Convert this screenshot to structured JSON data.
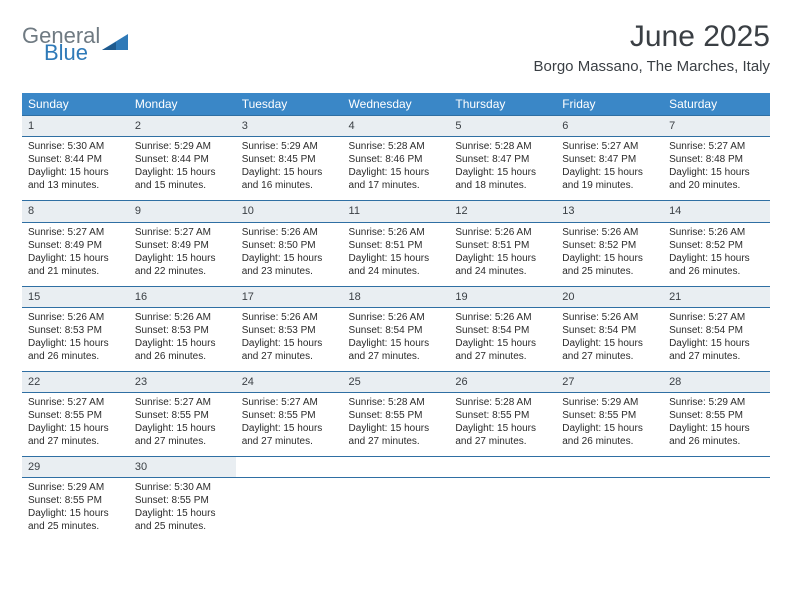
{
  "logo": {
    "part1": "General",
    "part2": "Blue"
  },
  "title": "June 2025",
  "subtitle": "Borgo Massano, The Marches, Italy",
  "colors": {
    "header_bg": "#3a87c7",
    "header_text": "#ffffff",
    "daynum_bg": "#e9eef2",
    "row_border": "#2f6fa3",
    "logo_gray": "#6f7a82",
    "logo_blue": "#2f7ab8",
    "title_color": "#3a3f44"
  },
  "weekdays": [
    "Sunday",
    "Monday",
    "Tuesday",
    "Wednesday",
    "Thursday",
    "Friday",
    "Saturday"
  ],
  "weeks": [
    [
      {
        "day": "1",
        "sunrise": "Sunrise: 5:30 AM",
        "sunset": "Sunset: 8:44 PM",
        "daylight": "Daylight: 15 hours and 13 minutes."
      },
      {
        "day": "2",
        "sunrise": "Sunrise: 5:29 AM",
        "sunset": "Sunset: 8:44 PM",
        "daylight": "Daylight: 15 hours and 15 minutes."
      },
      {
        "day": "3",
        "sunrise": "Sunrise: 5:29 AM",
        "sunset": "Sunset: 8:45 PM",
        "daylight": "Daylight: 15 hours and 16 minutes."
      },
      {
        "day": "4",
        "sunrise": "Sunrise: 5:28 AM",
        "sunset": "Sunset: 8:46 PM",
        "daylight": "Daylight: 15 hours and 17 minutes."
      },
      {
        "day": "5",
        "sunrise": "Sunrise: 5:28 AM",
        "sunset": "Sunset: 8:47 PM",
        "daylight": "Daylight: 15 hours and 18 minutes."
      },
      {
        "day": "6",
        "sunrise": "Sunrise: 5:27 AM",
        "sunset": "Sunset: 8:47 PM",
        "daylight": "Daylight: 15 hours and 19 minutes."
      },
      {
        "day": "7",
        "sunrise": "Sunrise: 5:27 AM",
        "sunset": "Sunset: 8:48 PM",
        "daylight": "Daylight: 15 hours and 20 minutes."
      }
    ],
    [
      {
        "day": "8",
        "sunrise": "Sunrise: 5:27 AM",
        "sunset": "Sunset: 8:49 PM",
        "daylight": "Daylight: 15 hours and 21 minutes."
      },
      {
        "day": "9",
        "sunrise": "Sunrise: 5:27 AM",
        "sunset": "Sunset: 8:49 PM",
        "daylight": "Daylight: 15 hours and 22 minutes."
      },
      {
        "day": "10",
        "sunrise": "Sunrise: 5:26 AM",
        "sunset": "Sunset: 8:50 PM",
        "daylight": "Daylight: 15 hours and 23 minutes."
      },
      {
        "day": "11",
        "sunrise": "Sunrise: 5:26 AM",
        "sunset": "Sunset: 8:51 PM",
        "daylight": "Daylight: 15 hours and 24 minutes."
      },
      {
        "day": "12",
        "sunrise": "Sunrise: 5:26 AM",
        "sunset": "Sunset: 8:51 PM",
        "daylight": "Daylight: 15 hours and 24 minutes."
      },
      {
        "day": "13",
        "sunrise": "Sunrise: 5:26 AM",
        "sunset": "Sunset: 8:52 PM",
        "daylight": "Daylight: 15 hours and 25 minutes."
      },
      {
        "day": "14",
        "sunrise": "Sunrise: 5:26 AM",
        "sunset": "Sunset: 8:52 PM",
        "daylight": "Daylight: 15 hours and 26 minutes."
      }
    ],
    [
      {
        "day": "15",
        "sunrise": "Sunrise: 5:26 AM",
        "sunset": "Sunset: 8:53 PM",
        "daylight": "Daylight: 15 hours and 26 minutes."
      },
      {
        "day": "16",
        "sunrise": "Sunrise: 5:26 AM",
        "sunset": "Sunset: 8:53 PM",
        "daylight": "Daylight: 15 hours and 26 minutes."
      },
      {
        "day": "17",
        "sunrise": "Sunrise: 5:26 AM",
        "sunset": "Sunset: 8:53 PM",
        "daylight": "Daylight: 15 hours and 27 minutes."
      },
      {
        "day": "18",
        "sunrise": "Sunrise: 5:26 AM",
        "sunset": "Sunset: 8:54 PM",
        "daylight": "Daylight: 15 hours and 27 minutes."
      },
      {
        "day": "19",
        "sunrise": "Sunrise: 5:26 AM",
        "sunset": "Sunset: 8:54 PM",
        "daylight": "Daylight: 15 hours and 27 minutes."
      },
      {
        "day": "20",
        "sunrise": "Sunrise: 5:26 AM",
        "sunset": "Sunset: 8:54 PM",
        "daylight": "Daylight: 15 hours and 27 minutes."
      },
      {
        "day": "21",
        "sunrise": "Sunrise: 5:27 AM",
        "sunset": "Sunset: 8:54 PM",
        "daylight": "Daylight: 15 hours and 27 minutes."
      }
    ],
    [
      {
        "day": "22",
        "sunrise": "Sunrise: 5:27 AM",
        "sunset": "Sunset: 8:55 PM",
        "daylight": "Daylight: 15 hours and 27 minutes."
      },
      {
        "day": "23",
        "sunrise": "Sunrise: 5:27 AM",
        "sunset": "Sunset: 8:55 PM",
        "daylight": "Daylight: 15 hours and 27 minutes."
      },
      {
        "day": "24",
        "sunrise": "Sunrise: 5:27 AM",
        "sunset": "Sunset: 8:55 PM",
        "daylight": "Daylight: 15 hours and 27 minutes."
      },
      {
        "day": "25",
        "sunrise": "Sunrise: 5:28 AM",
        "sunset": "Sunset: 8:55 PM",
        "daylight": "Daylight: 15 hours and 27 minutes."
      },
      {
        "day": "26",
        "sunrise": "Sunrise: 5:28 AM",
        "sunset": "Sunset: 8:55 PM",
        "daylight": "Daylight: 15 hours and 27 minutes."
      },
      {
        "day": "27",
        "sunrise": "Sunrise: 5:29 AM",
        "sunset": "Sunset: 8:55 PM",
        "daylight": "Daylight: 15 hours and 26 minutes."
      },
      {
        "day": "28",
        "sunrise": "Sunrise: 5:29 AM",
        "sunset": "Sunset: 8:55 PM",
        "daylight": "Daylight: 15 hours and 26 minutes."
      }
    ],
    [
      {
        "day": "29",
        "sunrise": "Sunrise: 5:29 AM",
        "sunset": "Sunset: 8:55 PM",
        "daylight": "Daylight: 15 hours and 25 minutes."
      },
      {
        "day": "30",
        "sunrise": "Sunrise: 5:30 AM",
        "sunset": "Sunset: 8:55 PM",
        "daylight": "Daylight: 15 hours and 25 minutes."
      },
      null,
      null,
      null,
      null,
      null
    ]
  ]
}
